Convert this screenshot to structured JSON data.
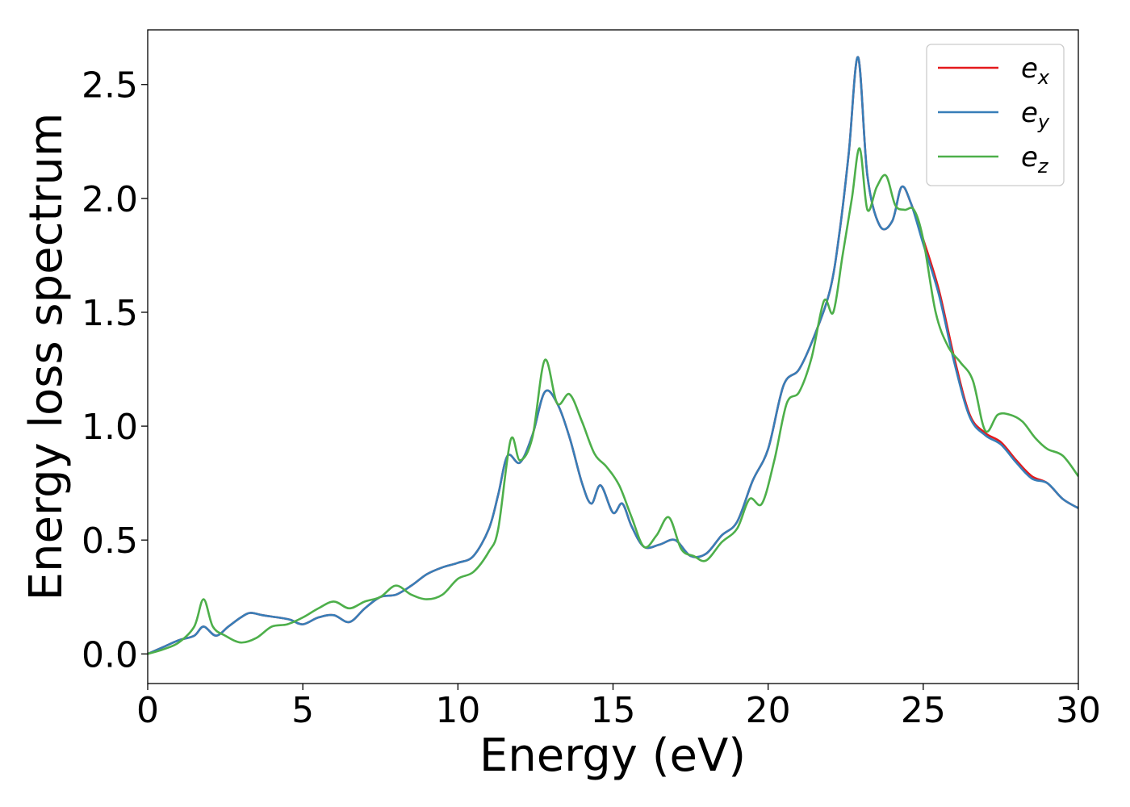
{
  "chart_data": {
    "type": "line",
    "xlabel": "Energy (eV)",
    "ylabel": "Energy loss spectrum",
    "xlim": [
      0,
      30
    ],
    "ylim": [
      -0.13,
      2.74
    ],
    "xticks": [
      0,
      5,
      10,
      15,
      20,
      25,
      30
    ],
    "xtick_labels": [
      "0",
      "5",
      "10",
      "15",
      "20",
      "25",
      "30"
    ],
    "yticks": [
      0.0,
      0.5,
      1.0,
      1.5,
      2.0,
      2.5
    ],
    "ytick_labels": [
      "0.0",
      "0.5",
      "1.0",
      "1.5",
      "2.0",
      "2.5"
    ],
    "grid": false,
    "legend_position": "top-right",
    "series": [
      {
        "name": "ex",
        "name_base": "e",
        "name_sub": "x",
        "color": "#e41a1c",
        "x": [
          0,
          0.5,
          1,
          1.5,
          1.8,
          2.2,
          2.6,
          3,
          3.3,
          3.7,
          4.2,
          4.6,
          5,
          5.5,
          6,
          6.5,
          7,
          7.5,
          8,
          8.5,
          9,
          9.5,
          10,
          10.5,
          11,
          11.3,
          11.6,
          12,
          12.4,
          12.8,
          13.2,
          13.6,
          14,
          14.3,
          14.6,
          15,
          15.3,
          15.6,
          16,
          16.5,
          17,
          17.5,
          18,
          18.5,
          19,
          19.5,
          20,
          20.5,
          21,
          21.5,
          22,
          22.3,
          22.6,
          22.9,
          23.2,
          23.6,
          24,
          24.3,
          24.6,
          25,
          25.5,
          26,
          26.5,
          27,
          27.5,
          28,
          28.5,
          29,
          29.5,
          30
        ],
        "y": [
          0.0,
          0.03,
          0.06,
          0.08,
          0.12,
          0.08,
          0.12,
          0.16,
          0.18,
          0.17,
          0.16,
          0.15,
          0.13,
          0.16,
          0.17,
          0.14,
          0.2,
          0.25,
          0.26,
          0.3,
          0.35,
          0.38,
          0.4,
          0.43,
          0.55,
          0.7,
          0.87,
          0.84,
          0.96,
          1.15,
          1.1,
          0.95,
          0.75,
          0.66,
          0.74,
          0.62,
          0.66,
          0.56,
          0.47,
          0.48,
          0.5,
          0.43,
          0.44,
          0.52,
          0.58,
          0.76,
          0.9,
          1.18,
          1.25,
          1.4,
          1.6,
          1.85,
          2.2,
          2.62,
          2.1,
          1.88,
          1.9,
          2.05,
          1.98,
          1.82,
          1.6,
          1.3,
          1.05,
          0.97,
          0.93,
          0.85,
          0.78,
          0.75,
          0.68,
          0.64
        ]
      },
      {
        "name": "ey",
        "name_base": "e",
        "name_sub": "y",
        "color": "#377eb8",
        "x": [
          0,
          0.5,
          1,
          1.5,
          1.8,
          2.2,
          2.6,
          3,
          3.3,
          3.7,
          4.2,
          4.6,
          5,
          5.5,
          6,
          6.5,
          7,
          7.5,
          8,
          8.5,
          9,
          9.5,
          10,
          10.5,
          11,
          11.3,
          11.6,
          12,
          12.4,
          12.8,
          13.2,
          13.6,
          14,
          14.3,
          14.6,
          15,
          15.3,
          15.6,
          16,
          16.5,
          17,
          17.5,
          18,
          18.5,
          19,
          19.5,
          20,
          20.5,
          21,
          21.5,
          22,
          22.3,
          22.6,
          22.9,
          23.2,
          23.6,
          24,
          24.3,
          24.6,
          25,
          25.5,
          26,
          26.5,
          27,
          27.5,
          28,
          28.5,
          29,
          29.5,
          30
        ],
        "y": [
          0.0,
          0.03,
          0.06,
          0.08,
          0.12,
          0.08,
          0.12,
          0.16,
          0.18,
          0.17,
          0.16,
          0.15,
          0.13,
          0.16,
          0.17,
          0.14,
          0.2,
          0.25,
          0.26,
          0.3,
          0.35,
          0.38,
          0.4,
          0.43,
          0.55,
          0.7,
          0.87,
          0.84,
          0.96,
          1.15,
          1.1,
          0.95,
          0.75,
          0.66,
          0.74,
          0.62,
          0.66,
          0.56,
          0.47,
          0.48,
          0.5,
          0.43,
          0.44,
          0.52,
          0.58,
          0.76,
          0.9,
          1.18,
          1.25,
          1.4,
          1.6,
          1.85,
          2.2,
          2.62,
          2.1,
          1.88,
          1.9,
          2.05,
          1.98,
          1.8,
          1.58,
          1.28,
          1.04,
          0.96,
          0.92,
          0.84,
          0.77,
          0.75,
          0.68,
          0.64
        ]
      },
      {
        "name": "ez",
        "name_base": "e",
        "name_sub": "z",
        "color": "#4daf4a",
        "x": [
          0,
          0.5,
          1,
          1.5,
          1.8,
          2.1,
          2.5,
          3,
          3.5,
          4,
          4.5,
          5,
          5.5,
          6,
          6.5,
          7,
          7.5,
          8,
          8.5,
          9,
          9.5,
          10,
          10.5,
          11,
          11.3,
          11.7,
          12,
          12.4,
          12.8,
          13.2,
          13.6,
          14,
          14.4,
          14.8,
          15.2,
          15.6,
          16,
          16.4,
          16.8,
          17.2,
          17.6,
          18,
          18.5,
          19,
          19.4,
          19.8,
          20.2,
          20.6,
          21,
          21.4,
          21.8,
          22.1,
          22.4,
          22.7,
          22.95,
          23.2,
          23.5,
          23.8,
          24.1,
          24.4,
          24.7,
          25,
          25.4,
          25.8,
          26.2,
          26.6,
          27,
          27.4,
          27.8,
          28.2,
          28.6,
          29,
          29.5,
          30
        ],
        "y": [
          0.0,
          0.02,
          0.05,
          0.12,
          0.24,
          0.12,
          0.08,
          0.05,
          0.07,
          0.12,
          0.13,
          0.16,
          0.2,
          0.23,
          0.2,
          0.23,
          0.25,
          0.3,
          0.26,
          0.24,
          0.26,
          0.33,
          0.36,
          0.45,
          0.55,
          0.94,
          0.85,
          0.95,
          1.29,
          1.1,
          1.14,
          1.02,
          0.88,
          0.82,
          0.74,
          0.6,
          0.47,
          0.52,
          0.6,
          0.46,
          0.43,
          0.41,
          0.49,
          0.55,
          0.68,
          0.66,
          0.85,
          1.1,
          1.15,
          1.3,
          1.55,
          1.5,
          1.75,
          2.0,
          2.22,
          1.95,
          2.05,
          2.1,
          1.97,
          1.95,
          1.95,
          1.82,
          1.5,
          1.35,
          1.28,
          1.2,
          0.98,
          1.05,
          1.05,
          1.02,
          0.95,
          0.9,
          0.87,
          0.78
        ]
      }
    ]
  }
}
